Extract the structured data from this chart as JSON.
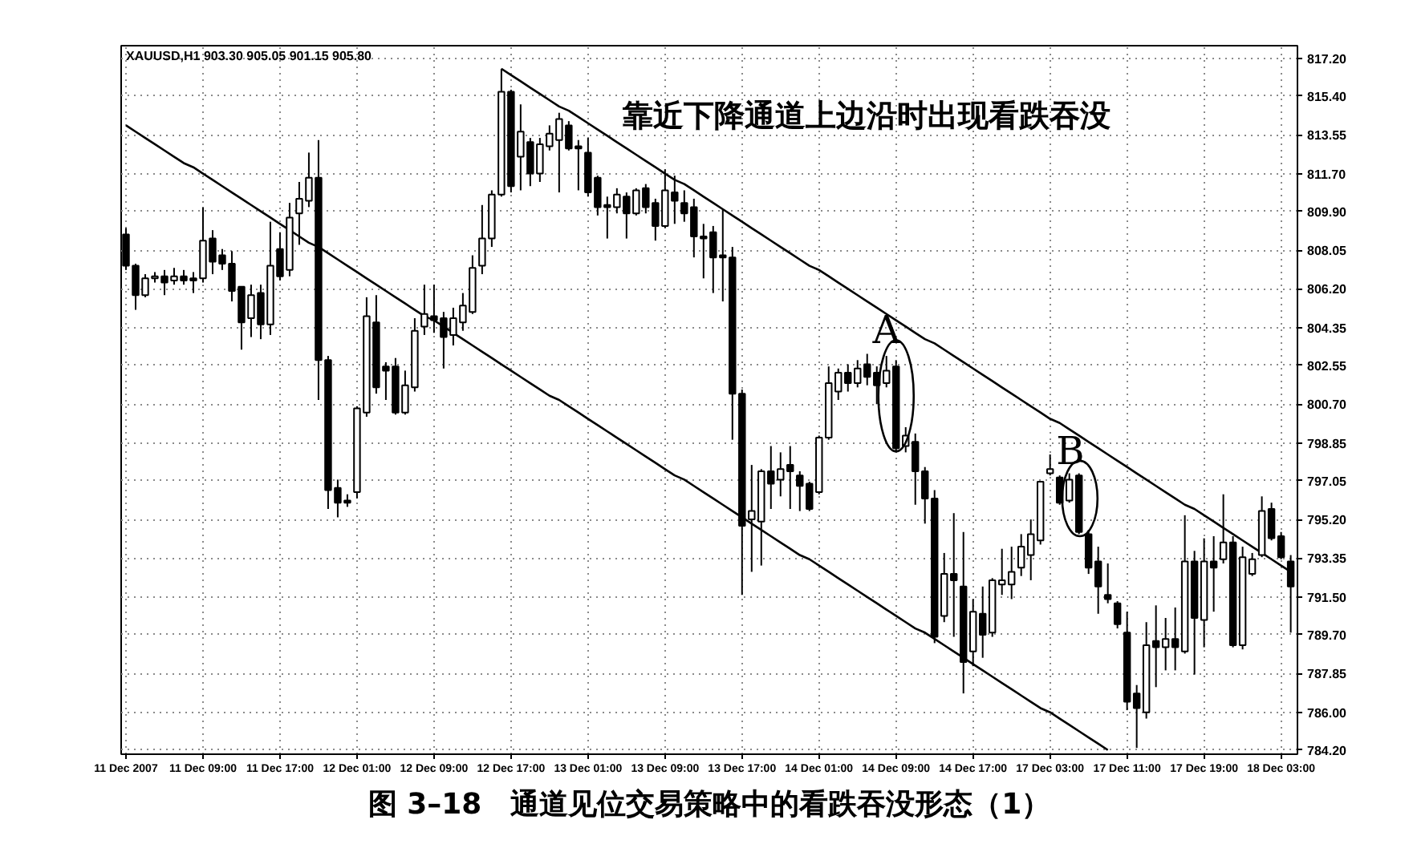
{
  "chart_data": {
    "type": "candlestick",
    "title": "靠近下降通道上边沿时出现看跌吞没",
    "subtitle": "XAUUSD,H1 903.30 905.05 901.15 905.80",
    "annotations": [
      "图 3–18　通道见位交易策略中的看跌吞没形态（1）",
      {
        "text": "A",
        "x": "14 Dec 09:00",
        "y": 801.1
      },
      {
        "text": "B",
        "y": 796.2
      }
    ],
    "categories": [
      "11 Dec 2007",
      null,
      null,
      null,
      null,
      null,
      null,
      null,
      "11 Dec 09:00",
      null,
      null,
      null,
      null,
      null,
      null,
      null,
      "11 Dec 17:00",
      null,
      null,
      null,
      null,
      null,
      null,
      null,
      "12 Dec 01:00",
      null,
      null,
      null,
      null,
      null,
      null,
      null,
      "12 Dec 09:00",
      null,
      null,
      null,
      null,
      null,
      null,
      null,
      "12 Dec 17:00",
      null,
      null,
      null,
      null,
      null,
      null,
      null,
      "13 Dec 01:00",
      null,
      null,
      null,
      null,
      null,
      null,
      null,
      "13 Dec 09:00",
      null,
      null,
      null,
      null,
      null,
      null,
      null,
      "13 Dec 17:00",
      null,
      null,
      null,
      null,
      null,
      null,
      null,
      "14 Dec 01:00",
      null,
      null,
      null,
      null,
      null,
      null,
      null,
      "14 Dec 09:00",
      null,
      null,
      null,
      null,
      null,
      null,
      null,
      "14 Dec 17:00",
      null,
      null,
      null,
      null,
      null,
      null,
      null,
      "17 Dec 03:00",
      null,
      null,
      null,
      null,
      null,
      null,
      null,
      "17 Dec 11:00",
      null,
      null,
      null,
      null,
      null,
      null,
      null,
      "17 Dec 19:00",
      null,
      null,
      null,
      null,
      null,
      null,
      null,
      "18 Dec 03:00",
      null
    ],
    "ohlc": [
      [
        808.8,
        809.1,
        807.1,
        807.3
      ],
      [
        807.3,
        807.4,
        805.2,
        805.9
      ],
      [
        805.9,
        806.9,
        805.8,
        806.7
      ],
      [
        806.7,
        807.0,
        806.5,
        806.8
      ],
      [
        806.8,
        807.1,
        805.9,
        806.5
      ],
      [
        806.6,
        807.2,
        806.4,
        806.8
      ],
      [
        806.8,
        807.1,
        806.4,
        806.6
      ],
      [
        806.7,
        807.0,
        806.0,
        806.6
      ],
      [
        806.7,
        810.1,
        806.5,
        808.5
      ],
      [
        808.6,
        809.0,
        806.9,
        807.5
      ],
      [
        807.8,
        808.1,
        807.1,
        807.4
      ],
      [
        807.4,
        808.0,
        805.6,
        806.1
      ],
      [
        806.3,
        806.3,
        803.3,
        804.6
      ],
      [
        804.8,
        806.4,
        803.9,
        805.9
      ],
      [
        806.0,
        806.4,
        803.8,
        804.5
      ],
      [
        804.5,
        809.4,
        804.0,
        807.3
      ],
      [
        808.1,
        808.9,
        806.6,
        806.8
      ],
      [
        807.1,
        810.3,
        806.8,
        809.6
      ],
      [
        809.8,
        811.3,
        808.3,
        810.5
      ],
      [
        810.4,
        812.7,
        810.1,
        811.5
      ],
      [
        811.5,
        813.3,
        800.9,
        802.8
      ],
      [
        802.8,
        803.0,
        795.7,
        796.6
      ],
      [
        796.7,
        797.1,
        795.3,
        796.0
      ],
      [
        796.1,
        796.4,
        795.8,
        796.0
      ],
      [
        796.5,
        800.6,
        796.2,
        800.5
      ],
      [
        800.3,
        805.8,
        800.1,
        804.9
      ],
      [
        804.6,
        805.9,
        801.2,
        801.5
      ],
      [
        802.5,
        802.7,
        800.9,
        802.3
      ],
      [
        802.5,
        802.9,
        800.2,
        800.3
      ],
      [
        800.3,
        802.3,
        800.2,
        801.6
      ],
      [
        801.5,
        804.8,
        801.3,
        804.2
      ],
      [
        804.4,
        806.4,
        804.0,
        805.0
      ],
      [
        804.9,
        806.4,
        804.1,
        804.7
      ],
      [
        804.8,
        805.1,
        802.4,
        803.9
      ],
      [
        804.0,
        805.3,
        803.5,
        804.8
      ],
      [
        804.6,
        806.0,
        804.2,
        805.4
      ],
      [
        805.1,
        807.8,
        805.0,
        807.2
      ],
      [
        807.3,
        810.2,
        806.9,
        808.6
      ],
      [
        808.6,
        810.9,
        808.2,
        810.7
      ],
      [
        810.7,
        816.7,
        810.6,
        815.6
      ],
      [
        815.6,
        815.7,
        810.8,
        811.1
      ],
      [
        812.5,
        815.0,
        810.9,
        813.7
      ],
      [
        813.2,
        813.4,
        811.1,
        811.7
      ],
      [
        811.7,
        813.4,
        811.3,
        813.1
      ],
      [
        813.0,
        814.0,
        812.8,
        813.6
      ],
      [
        813.3,
        814.6,
        810.8,
        814.3
      ],
      [
        814.0,
        814.2,
        812.8,
        812.9
      ],
      [
        813.0,
        813.3,
        810.9,
        812.9
      ],
      [
        812.7,
        813.4,
        810.6,
        810.8
      ],
      [
        811.5,
        811.6,
        809.7,
        810.1
      ],
      [
        810.2,
        810.6,
        808.6,
        810.1
      ],
      [
        810.1,
        811.0,
        809.8,
        810.7
      ],
      [
        810.6,
        810.8,
        808.6,
        809.8
      ],
      [
        809.8,
        811.0,
        809.7,
        810.9
      ],
      [
        811.0,
        811.2,
        809.8,
        810.1
      ],
      [
        810.3,
        810.5,
        808.5,
        809.2
      ],
      [
        809.2,
        811.9,
        809.1,
        810.9
      ],
      [
        810.8,
        811.6,
        809.3,
        810.4
      ],
      [
        810.3,
        810.9,
        809.4,
        809.8
      ],
      [
        810.1,
        810.5,
        807.7,
        808.7
      ],
      [
        808.7,
        809.3,
        806.7,
        808.6
      ],
      [
        808.9,
        809.2,
        806.0,
        807.7
      ],
      [
        807.8,
        810.0,
        805.6,
        807.7
      ],
      [
        807.7,
        808.2,
        799.0,
        801.2
      ],
      [
        801.2,
        801.4,
        791.6,
        794.9
      ],
      [
        795.2,
        797.8,
        792.7,
        795.6
      ],
      [
        795.1,
        797.6,
        793.0,
        797.5
      ],
      [
        797.5,
        798.7,
        795.7,
        796.9
      ],
      [
        797.1,
        798.4,
        796.3,
        797.6
      ],
      [
        797.8,
        798.7,
        795.7,
        797.5
      ],
      [
        797.3,
        797.5,
        795.6,
        796.8
      ],
      [
        796.9,
        797.0,
        795.6,
        795.7
      ],
      [
        796.5,
        799.2,
        796.4,
        799.1
      ],
      [
        799.1,
        802.5,
        799.0,
        801.7
      ],
      [
        801.3,
        802.4,
        800.9,
        802.2
      ],
      [
        802.2,
        802.6,
        801.3,
        801.7
      ],
      [
        801.7,
        802.8,
        801.5,
        802.4
      ],
      [
        802.6,
        803.1,
        801.6,
        802.0
      ],
      [
        802.2,
        802.5,
        800.7,
        801.6
      ],
      [
        801.7,
        803.0,
        801.5,
        802.3
      ],
      [
        802.5,
        802.8,
        798.4,
        798.6
      ],
      [
        798.7,
        799.6,
        798.4,
        799.2
      ],
      [
        798.9,
        799.3,
        795.9,
        797.5
      ],
      [
        797.5,
        797.7,
        795.0,
        796.2
      ],
      [
        796.2,
        796.6,
        789.3,
        789.6
      ],
      [
        790.6,
        793.6,
        790.3,
        792.6
      ],
      [
        792.6,
        795.5,
        789.6,
        792.3
      ],
      [
        792.0,
        794.6,
        786.9,
        788.4
      ],
      [
        788.9,
        791.4,
        788.2,
        790.8
      ],
      [
        790.7,
        792.0,
        788.6,
        789.7
      ],
      [
        789.8,
        792.4,
        789.6,
        792.3
      ],
      [
        792.1,
        793.8,
        791.6,
        792.3
      ],
      [
        792.1,
        793.9,
        791.4,
        792.7
      ],
      [
        792.9,
        794.5,
        792.5,
        793.9
      ],
      [
        793.5,
        795.2,
        792.3,
        794.5
      ],
      [
        794.2,
        797.0,
        794.0,
        797.0
      ],
      [
        797.4,
        798.3,
        797.3,
        797.6
      ],
      [
        797.2,
        797.3,
        795.9,
        796.0
      ],
      [
        796.1,
        797.4,
        796.0,
        797.1
      ],
      [
        797.3,
        797.4,
        794.5,
        794.6
      ],
      [
        794.5,
        794.7,
        792.6,
        792.9
      ],
      [
        793.2,
        793.9,
        790.7,
        792.0
      ],
      [
        791.6,
        793.1,
        791.2,
        791.4
      ],
      [
        791.2,
        791.3,
        790.0,
        790.2
      ],
      [
        789.8,
        790.8,
        786.1,
        786.5
      ],
      [
        786.9,
        787.3,
        784.3,
        786.2
      ],
      [
        786.0,
        790.3,
        785.7,
        789.2
      ],
      [
        789.4,
        791.1,
        787.2,
        789.1
      ],
      [
        789.1,
        790.5,
        788.0,
        789.5
      ],
      [
        789.5,
        791.0,
        788.0,
        789.1
      ],
      [
        788.9,
        795.4,
        788.8,
        793.2
      ],
      [
        793.2,
        793.7,
        787.8,
        790.5
      ],
      [
        790.4,
        794.3,
        789.1,
        793.2
      ],
      [
        793.2,
        794.4,
        790.8,
        792.9
      ],
      [
        793.3,
        796.4,
        793.1,
        794.1
      ],
      [
        794.1,
        794.4,
        789.1,
        789.2
      ],
      [
        789.2,
        793.9,
        789.0,
        793.4
      ],
      [
        792.6,
        793.6,
        792.5,
        793.3
      ],
      [
        793.5,
        796.3,
        793.4,
        795.6
      ],
      [
        795.7,
        796.0,
        794.2,
        794.3
      ],
      [
        794.4,
        794.6,
        793.3,
        793.4
      ],
      [
        793.2,
        793.5,
        789.8,
        792.0
      ]
    ],
    "series": [
      {
        "type": "line",
        "color": "#000000",
        "values": [
          814.0,
          813.7,
          813.4,
          813.1,
          812.8,
          812.5,
          812.2,
          812.0,
          811.7,
          811.4,
          811.1,
          810.8,
          810.5,
          810.2,
          809.9,
          809.6,
          809.3,
          809.0,
          808.7,
          808.4,
          808.2,
          807.9,
          807.6,
          807.3,
          807.0,
          806.7,
          806.4,
          806.1,
          805.8,
          805.5,
          805.2,
          804.9,
          804.7,
          804.4,
          804.1,
          803.8,
          803.5,
          803.2,
          802.9,
          802.6,
          802.3,
          802.0,
          801.7,
          801.4,
          801.1,
          800.9,
          800.6,
          800.3,
          800.0,
          799.7,
          799.4,
          799.1,
          798.8,
          798.5,
          798.2,
          797.9,
          797.6,
          797.3,
          797.1,
          796.8,
          796.5,
          796.2,
          795.9,
          795.6,
          795.3,
          795.0,
          794.7,
          794.4,
          794.1,
          793.8,
          793.5,
          793.3,
          793.0,
          792.7,
          792.4,
          792.1,
          791.8,
          791.5,
          791.2,
          790.9,
          790.6,
          790.3,
          790.0,
          789.8,
          789.5,
          789.2,
          788.9,
          788.6,
          788.3,
          788.0,
          787.7,
          787.4,
          787.1,
          786.8,
          786.5,
          786.2,
          786.0,
          785.7,
          785.4,
          785.1,
          784.8,
          784.5,
          784.2,
          null,
          null,
          null,
          null,
          null,
          null,
          null,
          null,
          null,
          null,
          null,
          null,
          null,
          null,
          null,
          null,
          null,
          null,
          null
        ]
      },
      {
        "type": "line",
        "color": "#000000",
        "values": [
          null,
          null,
          null,
          null,
          null,
          null,
          null,
          null,
          null,
          null,
          null,
          null,
          null,
          null,
          null,
          null,
          null,
          null,
          null,
          null,
          null,
          null,
          null,
          null,
          null,
          null,
          null,
          null,
          null,
          null,
          null,
          null,
          null,
          null,
          null,
          null,
          null,
          null,
          null,
          816.7,
          816.4,
          816.1,
          815.8,
          815.5,
          815.2,
          814.9,
          814.7,
          814.4,
          814.1,
          813.8,
          813.5,
          813.2,
          812.9,
          812.6,
          812.3,
          812.0,
          811.7,
          811.4,
          811.2,
          810.9,
          810.6,
          810.3,
          810.0,
          809.7,
          809.4,
          809.1,
          808.8,
          808.5,
          808.2,
          807.9,
          807.6,
          807.3,
          807.1,
          806.8,
          806.5,
          806.2,
          805.9,
          805.6,
          805.3,
          805.0,
          804.7,
          804.4,
          804.1,
          803.8,
          803.6,
          803.3,
          803.0,
          802.7,
          802.4,
          802.1,
          801.8,
          801.5,
          801.2,
          800.9,
          800.6,
          800.3,
          800.0,
          799.8,
          799.5,
          799.2,
          798.9,
          798.6,
          798.3,
          798.0,
          797.7,
          797.4,
          797.1,
          796.8,
          796.5,
          796.2,
          795.9,
          795.7,
          795.4,
          795.1,
          794.8,
          794.5,
          794.2,
          793.9,
          793.6,
          793.3,
          793.0,
          792.7
        ]
      }
    ],
    "ylim": [
      784.0,
      817.8
    ],
    "yticks": [
      {
        "value": 817.2,
        "label": "817.20"
      },
      {
        "value": 815.4,
        "label": "815.40"
      },
      {
        "value": 813.55,
        "label": "813.55"
      },
      {
        "value": 811.7,
        "label": "811.70"
      },
      {
        "value": 809.9,
        "label": "809.90"
      },
      {
        "value": 808.05,
        "label": "808.05"
      },
      {
        "value": 806.2,
        "label": "806.20"
      },
      {
        "value": 804.35,
        "label": "804.35"
      },
      {
        "value": 802.55,
        "label": "802.55"
      },
      {
        "value": 800.7,
        "label": "800.70"
      },
      {
        "value": 798.85,
        "label": "798.85"
      },
      {
        "value": 797.05,
        "label": "797.05"
      },
      {
        "value": 795.2,
        "label": "795.20"
      },
      {
        "value": 793.35,
        "label": "793.35"
      },
      {
        "value": 791.5,
        "label": "791.50"
      },
      {
        "value": 789.7,
        "label": "789.70"
      },
      {
        "value": 787.85,
        "label": "787.85"
      },
      {
        "value": 786.0,
        "label": "786.00"
      },
      {
        "value": 784.2,
        "label": "784.20"
      }
    ],
    "grid": true
  }
}
